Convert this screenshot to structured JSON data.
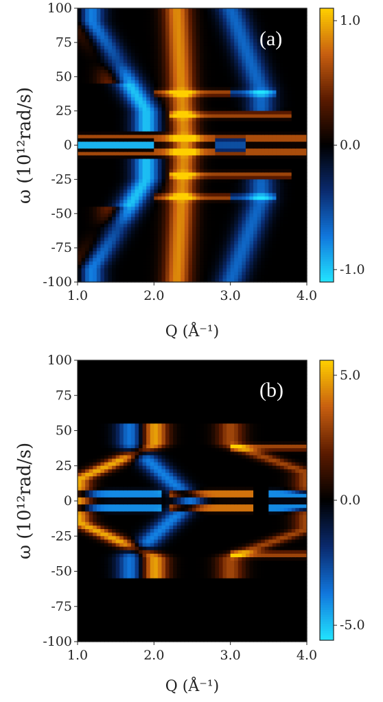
{
  "chart_data": [
    {
      "type": "heatmap",
      "panel_label": "(a)",
      "xlabel": "Q (Å⁻¹)",
      "ylabel": "ω (10¹²rad/s)",
      "xlim": [
        1.0,
        4.0
      ],
      "ylim": [
        -100,
        100
      ],
      "x_ticks": [
        "1.0",
        "2.0",
        "3.0",
        "4.0"
      ],
      "y_ticks": [
        "-100",
        "-75",
        "-50",
        "-25",
        "0",
        "25",
        "50",
        "75",
        "100"
      ],
      "colorbar": {
        "min": -1.1,
        "max": 1.1,
        "ticks": [
          -1.0,
          0.0,
          1.0
        ],
        "tick_labels": [
          "-1.0",
          "0.0",
          "1.0"
        ]
      },
      "colormap": [
        "#22e4ff",
        "#1177dd",
        "#0a2a6e",
        "#000000",
        "#5a1a00",
        "#c85f10",
        "#ffd000"
      ],
      "features": [
        {
          "kind": "band",
          "sign": 1,
          "from": [
            1.0,
            90
          ],
          "to": [
            1.45,
            60
          ],
          "strength": 0.5
        },
        {
          "kind": "band",
          "sign": -1,
          "from": [
            1.15,
            90
          ],
          "to": [
            1.9,
            25
          ],
          "strength": 0.9
        },
        {
          "kind": "band",
          "sign": 1,
          "from": [
            2.3,
            100
          ],
          "to": [
            2.4,
            0
          ],
          "strength": 0.8
        },
        {
          "kind": "band",
          "sign": -1,
          "from": [
            3.0,
            100
          ],
          "to": [
            3.4,
            40
          ],
          "strength": 0.6
        },
        {
          "kind": "line",
          "sign": 1,
          "omega": 5,
          "q_range": [
            1.0,
            4.0
          ],
          "strength": 0.8
        },
        {
          "kind": "line",
          "sign": -1,
          "omega": 2,
          "q_range": [
            1.0,
            2.0
          ],
          "strength": 1.0
        },
        {
          "kind": "line",
          "sign": -1,
          "omega": 3,
          "q_range": [
            2.8,
            3.2
          ],
          "strength": 1.0
        },
        {
          "kind": "line",
          "sign": 1,
          "omega": 38,
          "q_range": [
            2.0,
            3.0
          ],
          "strength": 0.6
        },
        {
          "kind": "line",
          "sign": -1,
          "omega": 38,
          "q_range": [
            3.0,
            3.6
          ],
          "strength": 0.5
        },
        {
          "kind": "line",
          "sign": 1,
          "omega": 22,
          "q_range": [
            2.2,
            3.8
          ],
          "strength": 0.6
        }
      ]
    },
    {
      "type": "heatmap",
      "panel_label": "(b)",
      "xlabel": "Q (Å⁻¹)",
      "ylabel": "ω (10¹²rad/s)",
      "xlim": [
        1.0,
        4.0
      ],
      "ylim": [
        -100,
        100
      ],
      "x_ticks": [
        "1.0",
        "2.0",
        "3.0",
        "4.0"
      ],
      "y_ticks": [
        "-100",
        "-75",
        "-50",
        "-25",
        "0",
        "25",
        "50",
        "75",
        "100"
      ],
      "colorbar": {
        "min": -5.6,
        "max": 5.6,
        "ticks": [
          -5.0,
          0.0,
          5.0
        ],
        "tick_labels": [
          "-5.0",
          "0.0",
          "5.0"
        ]
      },
      "colormap": [
        "#22e4ff",
        "#1177dd",
        "#0a2a6e",
        "#000000",
        "#5a1a00",
        "#c85f10",
        "#ffd000"
      ],
      "features": [
        {
          "kind": "band",
          "sign": 1,
          "from": [
            1.0,
            15
          ],
          "to": [
            2.0,
            40
          ],
          "strength": 0.9
        },
        {
          "kind": "band",
          "sign": -1,
          "from": [
            1.7,
            40
          ],
          "to": [
            2.5,
            0
          ],
          "strength": 0.7
        },
        {
          "kind": "band",
          "sign": 1,
          "from": [
            3.0,
            40
          ],
          "to": [
            4.0,
            20
          ],
          "strength": 0.55
        },
        {
          "kind": "line",
          "sign": -1,
          "omega": 5,
          "q_range": [
            1.0,
            2.1
          ],
          "strength": 1.0
        },
        {
          "kind": "line",
          "sign": 1,
          "omega": 5,
          "q_range": [
            2.2,
            3.3
          ],
          "strength": 1.0
        },
        {
          "kind": "line",
          "sign": -1,
          "omega": 5,
          "q_range": [
            3.5,
            4.0
          ],
          "strength": 1.0
        },
        {
          "kind": "line",
          "sign": 1,
          "omega": 38,
          "q_range": [
            3.0,
            4.0
          ],
          "strength": 0.6
        }
      ]
    }
  ]
}
